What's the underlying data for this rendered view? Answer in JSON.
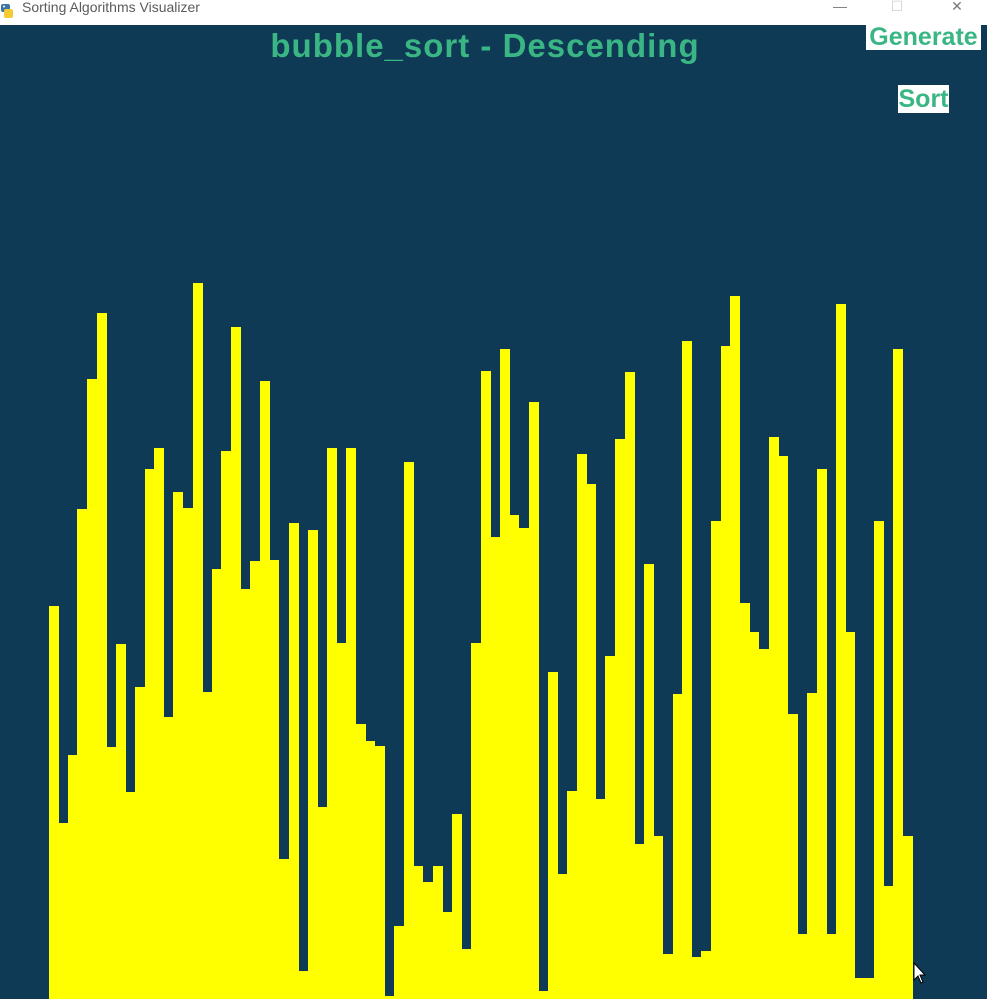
{
  "window": {
    "title": "Sorting Algorithms Visualizer",
    "minimize_glyph": "—",
    "maximize_glyph": "☐",
    "close_glyph": "✕"
  },
  "header": {
    "title": "bubble_sort - Descending"
  },
  "controls": {
    "generate_label": "Generate",
    "sort_label": "Sort"
  },
  "colors": {
    "background": "#0f3a55",
    "bar": "#ffff00",
    "accent": "#3ab685"
  },
  "array": {
    "max_value": 974,
    "values": [
      393,
      176,
      244,
      490,
      620,
      686,
      252,
      355,
      207,
      312,
      530,
      551,
      282,
      507,
      491,
      716,
      307,
      430,
      548,
      672,
      410,
      438,
      618,
      439,
      140,
      476,
      28,
      469,
      192,
      551,
      356,
      551,
      275,
      258,
      253,
      3,
      73,
      537,
      133,
      117,
      133,
      87,
      185,
      50,
      356,
      628,
      462,
      650,
      484,
      471,
      597,
      8,
      327,
      125,
      208,
      545,
      515,
      200,
      343,
      560,
      627,
      155,
      435,
      163,
      45,
      305,
      658,
      42,
      48,
      478,
      653,
      703,
      396,
      367,
      350,
      562,
      543,
      285,
      65,
      306,
      530,
      65,
      695,
      367,
      21,
      21,
      478,
      113,
      650,
      163
    ]
  }
}
